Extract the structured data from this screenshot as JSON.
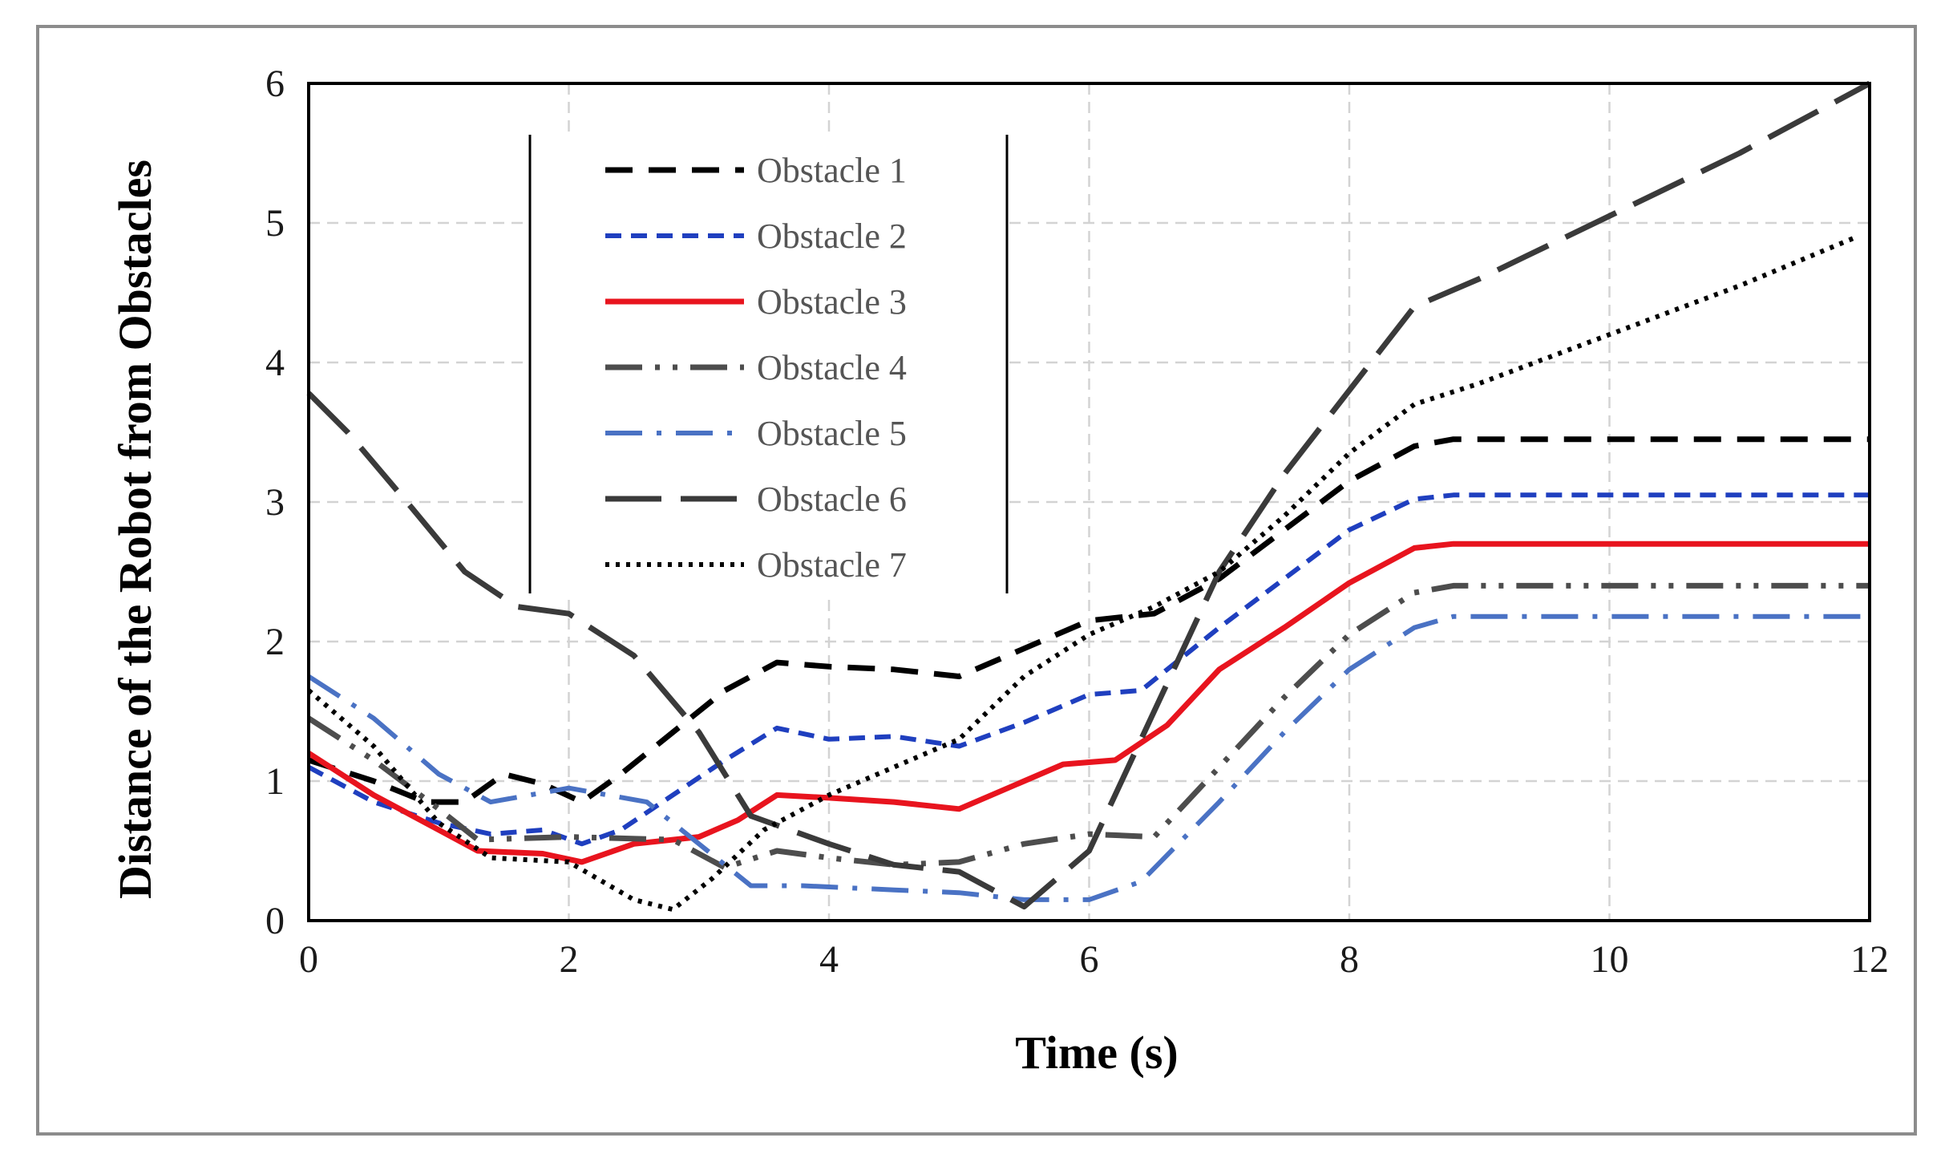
{
  "chart_data": {
    "type": "line",
    "title": "",
    "xlabel": "Time (s)",
    "ylabel": "Distance of the Robot from Obstacles",
    "xlim": [
      0,
      12
    ],
    "ylim": [
      0,
      6
    ],
    "xticks": [
      0,
      2,
      4,
      6,
      8,
      10,
      12
    ],
    "yticks": [
      0,
      1,
      2,
      3,
      4,
      5,
      6
    ],
    "xtick_labels": [
      "0",
      "2",
      "4",
      "6",
      "8",
      "10",
      "12"
    ],
    "ytick_labels": [
      "0",
      "1",
      "2",
      "3",
      "4",
      "5",
      "6"
    ],
    "grid": true,
    "legend_position": "top-left",
    "series": [
      {
        "name": "Obstacle 1",
        "color": "#000000",
        "style": "dash",
        "x": [
          0,
          0.5,
          0.9,
          1.2,
          1.5,
          1.8,
          2.1,
          2.4,
          2.8,
          3.2,
          3.6,
          4.0,
          4.5,
          5.0,
          5.5,
          6.0,
          6.5,
          7.0,
          7.5,
          8.0,
          8.5,
          8.8,
          12
        ],
        "y": [
          1.15,
          1.0,
          0.85,
          0.85,
          1.05,
          0.98,
          0.85,
          1.05,
          1.35,
          1.65,
          1.85,
          1.82,
          1.8,
          1.75,
          1.95,
          2.15,
          2.2,
          2.45,
          2.8,
          3.15,
          3.4,
          3.45,
          3.45
        ]
      },
      {
        "name": "Obstacle 2",
        "color": "#1f3fbf",
        "style": "short-dash",
        "x": [
          0,
          0.5,
          1.0,
          1.4,
          1.8,
          2.1,
          2.4,
          2.8,
          3.2,
          3.6,
          4.0,
          4.5,
          5.0,
          5.5,
          6.0,
          6.4,
          7.0,
          7.5,
          8.0,
          8.5,
          8.8,
          12
        ],
        "y": [
          1.1,
          0.85,
          0.7,
          0.62,
          0.65,
          0.55,
          0.65,
          0.9,
          1.15,
          1.38,
          1.3,
          1.32,
          1.25,
          1.42,
          1.62,
          1.65,
          2.1,
          2.45,
          2.8,
          3.02,
          3.05,
          3.05
        ]
      },
      {
        "name": "Obstacle 3",
        "color": "#e8141e",
        "style": "solid",
        "x": [
          0,
          0.5,
          1.0,
          1.3,
          1.8,
          2.1,
          2.5,
          3.0,
          3.3,
          3.6,
          4.0,
          4.5,
          5.0,
          5.5,
          5.8,
          6.2,
          6.6,
          7.0,
          7.5,
          8.0,
          8.5,
          8.8,
          12
        ],
        "y": [
          1.2,
          0.9,
          0.65,
          0.5,
          0.48,
          0.42,
          0.55,
          0.6,
          0.72,
          0.9,
          0.88,
          0.85,
          0.8,
          1.0,
          1.12,
          1.15,
          1.4,
          1.8,
          2.1,
          2.42,
          2.67,
          2.7,
          2.7
        ]
      },
      {
        "name": "Obstacle 4",
        "color": "#4d4d4d",
        "style": "dash-dot-dot",
        "x": [
          0,
          0.5,
          1.0,
          1.3,
          2.0,
          2.8,
          3.2,
          3.6,
          4.0,
          4.5,
          5.0,
          5.5,
          6.0,
          6.5,
          7.0,
          7.5,
          8.0,
          8.5,
          8.8,
          12
        ],
        "y": [
          1.45,
          1.15,
          0.8,
          0.58,
          0.6,
          0.58,
          0.38,
          0.5,
          0.45,
          0.4,
          0.42,
          0.55,
          0.62,
          0.6,
          1.1,
          1.6,
          2.05,
          2.35,
          2.4,
          2.4
        ]
      },
      {
        "name": "Obstacle 5",
        "color": "#4a72c4",
        "style": "dash-dot",
        "x": [
          0,
          0.5,
          1.0,
          1.4,
          2.0,
          2.6,
          3.0,
          3.4,
          3.8,
          4.5,
          5.0,
          5.5,
          6.0,
          6.4,
          7.0,
          7.5,
          8.0,
          8.5,
          8.8,
          12
        ],
        "y": [
          1.75,
          1.45,
          1.05,
          0.85,
          0.95,
          0.85,
          0.55,
          0.25,
          0.25,
          0.22,
          0.2,
          0.15,
          0.15,
          0.28,
          0.85,
          1.35,
          1.8,
          2.1,
          2.18,
          2.18
        ]
      },
      {
        "name": "Obstacle 6",
        "color": "#3a3a3a",
        "style": "long-dash",
        "x": [
          0,
          0.3,
          0.8,
          1.2,
          1.6,
          2.0,
          2.5,
          3.0,
          3.4,
          4.0,
          4.5,
          5.0,
          5.5,
          6.0,
          6.5,
          7.0,
          7.5,
          8.0,
          8.5,
          9.0,
          10.0,
          11.0,
          12.0
        ],
        "y": [
          3.78,
          3.5,
          2.95,
          2.5,
          2.25,
          2.2,
          1.9,
          1.35,
          0.75,
          0.55,
          0.4,
          0.35,
          0.1,
          0.5,
          1.5,
          2.5,
          3.2,
          3.8,
          4.4,
          4.6,
          5.05,
          5.5,
          6.0
        ]
      },
      {
        "name": "Obstacle 7",
        "color": "#000000",
        "style": "dot",
        "x": [
          0,
          0.5,
          1.0,
          1.4,
          2.0,
          2.5,
          2.8,
          3.1,
          3.5,
          4.0,
          4.5,
          5.0,
          5.5,
          6.0,
          6.5,
          7.0,
          7.5,
          8.0,
          8.5,
          9.0,
          10.0,
          11.0,
          11.9
        ],
        "y": [
          1.65,
          1.25,
          0.7,
          0.45,
          0.42,
          0.15,
          0.08,
          0.3,
          0.65,
          0.9,
          1.1,
          1.3,
          1.75,
          2.05,
          2.25,
          2.5,
          2.9,
          3.35,
          3.7,
          3.85,
          4.2,
          4.55,
          4.9
        ]
      }
    ]
  }
}
